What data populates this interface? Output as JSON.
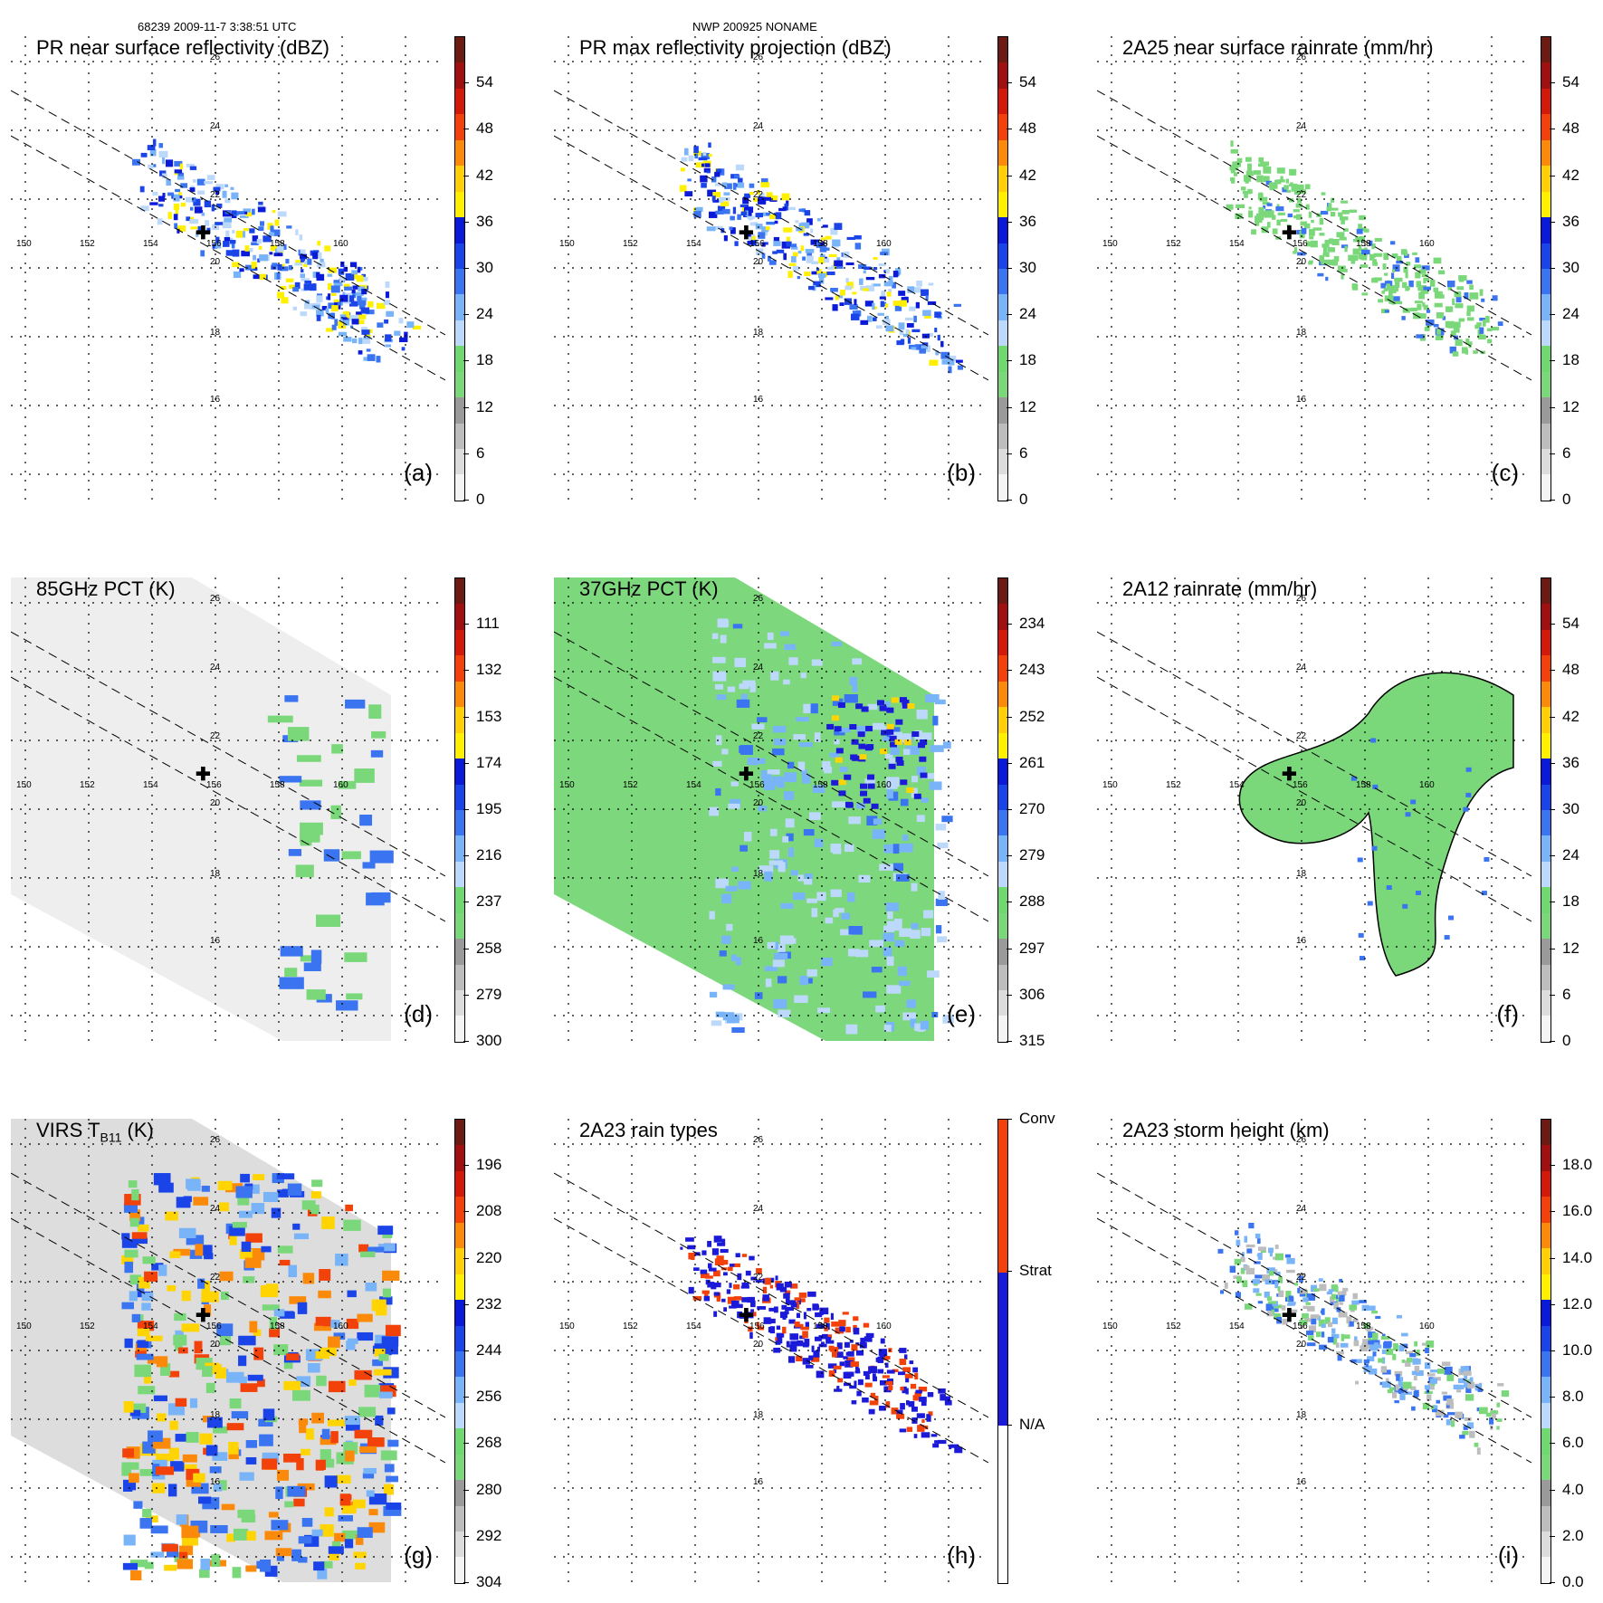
{
  "header": {
    "orbit_time": "68239 2009-11-7 3:38:51 UTC",
    "storm": "NWP 200925 NONAME"
  },
  "axes": {
    "lon_labels": [
      "150",
      "152",
      "154",
      "156",
      "158",
      "160"
    ],
    "lat_labels": [
      "26",
      "24",
      "22",
      "20",
      "18",
      "16"
    ]
  },
  "panels": [
    {
      "id": "a",
      "title": "PR near surface reflectivity (dBZ)",
      "label": "(a)",
      "ticks": [
        "54",
        "48",
        "42",
        "36",
        "30",
        "24",
        "18",
        "12",
        "6",
        "0"
      ],
      "bg": "#ffffff",
      "kind": "swath-narrow"
    },
    {
      "id": "b",
      "title": "PR max reflectivity projection (dBZ)",
      "label": "(b)",
      "ticks": [
        "54",
        "48",
        "42",
        "36",
        "30",
        "24",
        "18",
        "12",
        "6",
        "0"
      ],
      "bg": "#ffffff",
      "kind": "swath-narrow"
    },
    {
      "id": "c",
      "title": "2A25 near surface rainrate (mm/hr)",
      "label": "(c)",
      "ticks": [
        "54",
        "48",
        "42",
        "36",
        "30",
        "24",
        "18",
        "12",
        "6",
        "0"
      ],
      "bg": "#ffffff",
      "kind": "swath-narrow-green"
    },
    {
      "id": "d",
      "title": "85GHz PCT (K)",
      "label": "(d)",
      "ticks": [
        "111",
        "132",
        "153",
        "174",
        "195",
        "216",
        "237",
        "258",
        "279",
        "300"
      ],
      "bg": "#eeeeee",
      "kind": "wide-grey"
    },
    {
      "id": "e",
      "title": "37GHz PCT (K)",
      "label": "(e)",
      "ticks": [
        "234",
        "243",
        "252",
        "261",
        "270",
        "279",
        "288",
        "297",
        "306",
        "315"
      ],
      "bg": "#7dd87d",
      "kind": "wide-green"
    },
    {
      "id": "f",
      "title": "2A12 rainrate (mm/hr)",
      "label": "(f)",
      "ticks": [
        "54",
        "48",
        "42",
        "36",
        "30",
        "24",
        "18",
        "12",
        "6",
        "0"
      ],
      "bg": "#ffffff",
      "kind": "blobs-green"
    },
    {
      "id": "g",
      "title": "VIRS T",
      "title_sub": "B11",
      "title_unit": " (K)",
      "label": "(g)",
      "ticks": [
        "196",
        "208",
        "220",
        "232",
        "244",
        "256",
        "268",
        "280",
        "292",
        "304"
      ],
      "bg": "#dddddd",
      "kind": "wide-ir"
    },
    {
      "id": "h",
      "title": "2A23 rain types",
      "label": "(h)",
      "ticks": [
        "Conv",
        "Strat",
        "N/A"
      ],
      "bg": "#ffffff",
      "kind": "swath-type"
    },
    {
      "id": "i",
      "title": "2A23 storm height (km)",
      "label": "(i)",
      "ticks": [
        "18.0",
        "16.0",
        "14.0",
        "12.0",
        "10.0",
        "8.0",
        "6.0",
        "4.0",
        "2.0",
        "0.0"
      ],
      "bg": "#ffffff",
      "kind": "swath-height"
    }
  ],
  "colorscales": {
    "reflectivity": [
      "#6b1a14",
      "#a01010",
      "#d21a0a",
      "#f2420a",
      "#fb8a0a",
      "#ffcf0a",
      "#fff000",
      "#0a1ad8",
      "#1a44e8",
      "#3a74f0",
      "#7ab4f8",
      "#bcd8fa",
      "#6fd86f",
      "#7ad87a",
      "#9a9a9a",
      "#bdbdbd",
      "#dcdcdc",
      "#f4f4f4"
    ],
    "rain_types": [
      "#f2420a",
      "#1a1ad8",
      "#ffffff"
    ]
  }
}
